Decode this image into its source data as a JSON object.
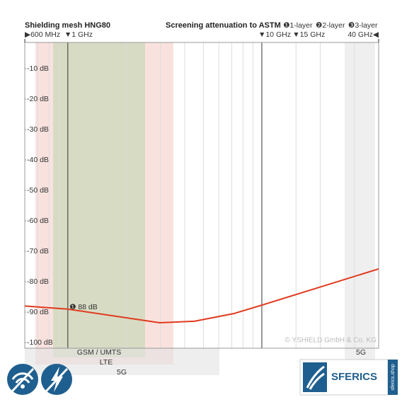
{
  "chart_data": {
    "type": "line",
    "title": "Shielding mesh HNG80",
    "subtitle": "Screening attenuation to ASTM",
    "legend": [
      "❶1-layer",
      "❷2-layer",
      "❸3-layer"
    ],
    "x": [
      0.6,
      1,
      2.97,
      4.5,
      7.15,
      10,
      40
    ],
    "series": [
      {
        "color": "#e03a1e",
        "values": [
          -88,
          -89,
          -93.5,
          -93,
          -90.5,
          -87.7,
          -75.8
        ]
      }
    ],
    "log_x": true,
    "xlim": [
      0.6,
      40
    ],
    "xticks": [
      {
        "value": 0.6,
        "label": "▶600 MHz"
      },
      {
        "value": 1,
        "label": "▼1 GHz"
      },
      {
        "value": 10,
        "label": "▼10 GHz"
      },
      {
        "value": 15,
        "label": "▼15 GHz"
      },
      {
        "value": 40,
        "label": "40 GHz◀"
      }
    ],
    "xminor": [
      0.7,
      0.8,
      0.9,
      2,
      3,
      4,
      5,
      6,
      7,
      8,
      9,
      20,
      30
    ],
    "ylim": [
      -102,
      0
    ],
    "yticks": [
      {
        "value": -10,
        "label": "-10 dB"
      },
      {
        "value": -20,
        "label": "-20 dB"
      },
      {
        "value": -30,
        "label": "-30 dB"
      },
      {
        "value": -40,
        "label": "-40 dB"
      },
      {
        "value": -50,
        "label": "-50 dB"
      },
      {
        "value": -60,
        "label": "-60 dB"
      },
      {
        "value": -70,
        "label": "-70 dB"
      },
      {
        "value": -80,
        "label": "-80 dB"
      },
      {
        "value": -90,
        "label": "-90 dB"
      },
      {
        "value": -100,
        "label": "-100 dB"
      }
    ],
    "annotation": "❶ 88 dB",
    "bands": [
      "GSM / UMTS",
      "LTE",
      "5G",
      "5G"
    ],
    "copyright": "© YSHIELD GmbH & Co. KG",
    "logo": "SFERICS",
    "logo_sub": "sferics.shop"
  }
}
